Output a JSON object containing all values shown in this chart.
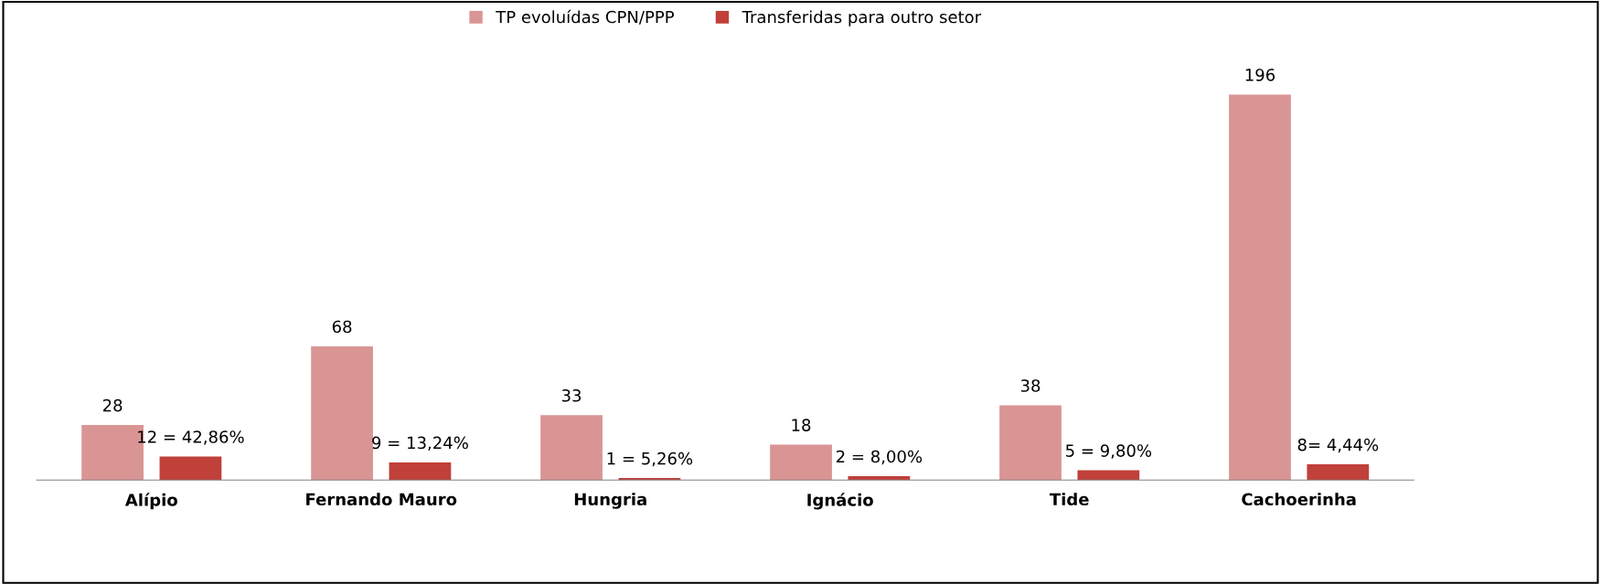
{
  "chart_data": {
    "type": "bar",
    "categories": [
      "Alípio",
      "Fernando Mauro",
      "Hungria",
      "Ignácio",
      "Tide",
      "Cachoerinha"
    ],
    "series": [
      {
        "name": "TP evoluídas CPN/PPP",
        "color": "#d99594",
        "values": [
          28,
          68,
          33,
          18,
          38,
          196
        ],
        "value_labels": [
          "28",
          "68",
          "33",
          "18",
          "38",
          "196"
        ]
      },
      {
        "name": "Transferidas para outro setor",
        "color": "#c0403a",
        "values": [
          12,
          9,
          1,
          2,
          5,
          8
        ],
        "value_labels": [
          "12 = 42,86%",
          "9 = 13,24%",
          "1 = 5,26%",
          "2 = 8,00%",
          "5 = 9,80%",
          "8= 4,44%"
        ]
      }
    ],
    "legend": "top",
    "grid": false
  }
}
